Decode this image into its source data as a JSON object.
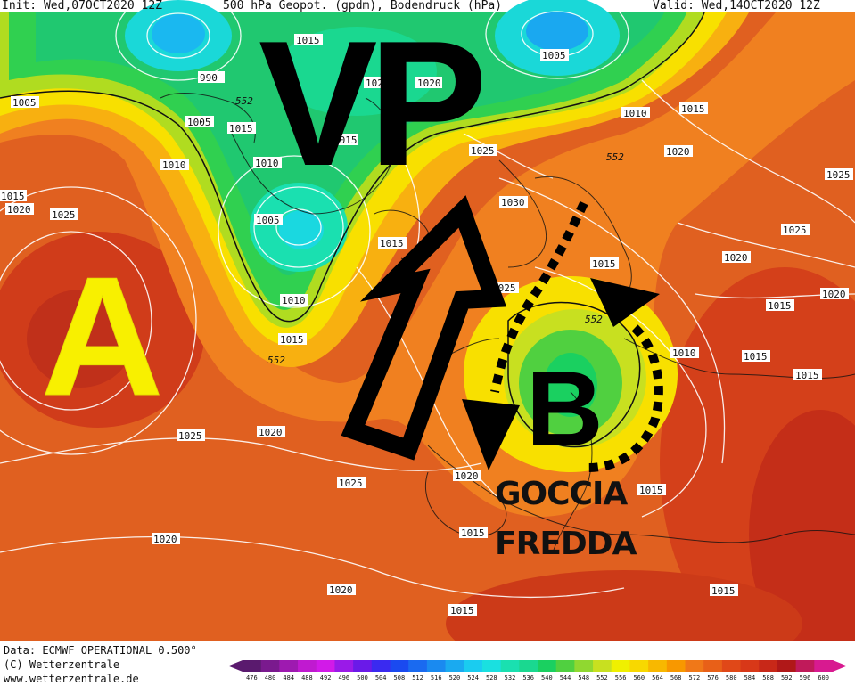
{
  "header": {
    "init": "Init: Wed,07OCT2020 12Z",
    "title": "500 hPa Geopot. (gpdm), Bodendruck (hPa)",
    "valid": "Valid: Wed,14OCT2020 12Z"
  },
  "footer": {
    "data_source": "Data: ECMWF OPERATIONAL 0.500°",
    "copyright": "(C) Wetterzentrale",
    "website": "www.wetterzentrale.de"
  },
  "annotations": {
    "vp": "VP",
    "high": "A",
    "low": "B",
    "goccia": "GOCCIA",
    "fredda": "FREDDA"
  },
  "isobar_labels": [
    "990",
    "1005",
    "1005",
    "1005",
    "1010",
    "1010",
    "1010",
    "1015",
    "1015",
    "1015",
    "1015",
    "1015",
    "1015",
    "1015",
    "1020",
    "1020",
    "1020",
    "1020",
    "1020",
    "1020",
    "1025",
    "1025",
    "1025",
    "1025",
    "1030",
    "1015",
    "1010",
    "1015",
    "1015",
    "1020",
    "1015",
    "1005",
    "1015",
    "1025",
    "552",
    "552",
    "552",
    "552",
    "1015",
    "1020",
    "1025",
    "1015",
    "1010",
    "1025",
    "1020",
    "1015",
    "1020"
  ],
  "color_scale": {
    "labels": [
      "476",
      "480",
      "484",
      "488",
      "492",
      "496",
      "500",
      "504",
      "508",
      "512",
      "516",
      "520",
      "524",
      "528",
      "532",
      "536",
      "540",
      "544",
      "548",
      "552",
      "556",
      "560",
      "564",
      "568",
      "572",
      "576",
      "580",
      "584",
      "588",
      "592",
      "596",
      "600"
    ],
    "colors": [
      "#5a1a6e",
      "#7a1a8e",
      "#9e1ab0",
      "#c01ad0",
      "#d21ae8",
      "#9a1ae8",
      "#6a1ae8",
      "#3a2af0",
      "#1a4af0",
      "#1a6af0",
      "#1a8af0",
      "#1aaaf0",
      "#1accf0",
      "#1ae0e0",
      "#1ae0b0",
      "#1ad890",
      "#1ad060",
      "#50d040",
      "#90d830",
      "#c8e020",
      "#f0f000",
      "#f8d800",
      "#f8b800",
      "#f89800",
      "#f07818",
      "#e86018",
      "#e04818",
      "#d83818",
      "#c82818",
      "#b01818",
      "#c01a5a",
      "#d81a90"
    ]
  }
}
